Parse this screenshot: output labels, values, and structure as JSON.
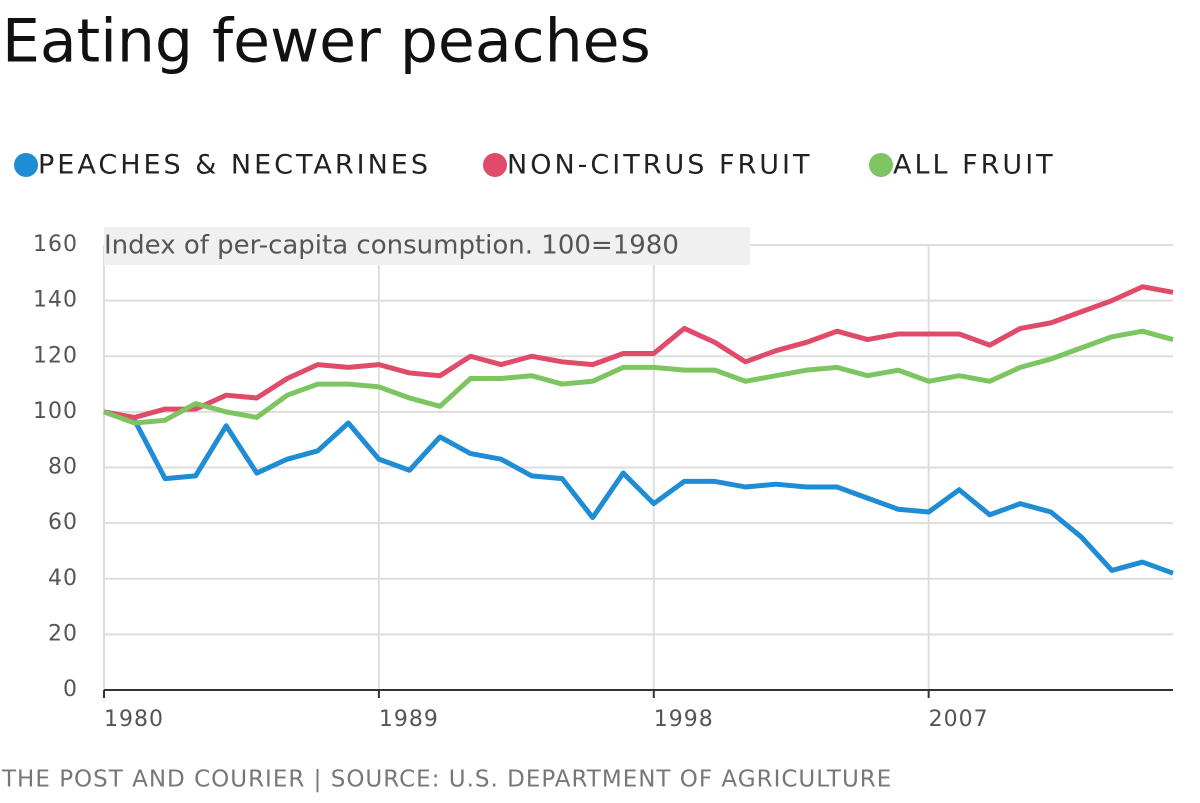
{
  "chart_data": {
    "type": "line",
    "title": "Eating fewer peaches",
    "subtitle": "Index of per-capita consumption. 100=1980",
    "source": "THE POST AND COURIER | SOURCE: U.S. DEPARTMENT OF AGRICULTURE",
    "x": [
      1980,
      1981,
      1982,
      1983,
      1984,
      1985,
      1986,
      1987,
      1988,
      1989,
      1990,
      1991,
      1992,
      1993,
      1994,
      1995,
      1996,
      1997,
      1998,
      1999,
      2000,
      2001,
      2002,
      2003,
      2004,
      2005,
      2006,
      2007,
      2008,
      2009,
      2010,
      2011,
      2012,
      2013,
      2014,
      2015
    ],
    "series": [
      {
        "name": "PEACHES & NECTARINES",
        "color": "#1f8dd6",
        "values": [
          100,
          97,
          76,
          77,
          95,
          78,
          83,
          86,
          96,
          83,
          79,
          91,
          85,
          83,
          77,
          76,
          62,
          78,
          67,
          75,
          75,
          73,
          74,
          73,
          73,
          69,
          65,
          64,
          72,
          63,
          67,
          64,
          55,
          43,
          46,
          42
        ]
      },
      {
        "name": "NON-CITRUS FRUIT",
        "color": "#e04b6a",
        "values": [
          100,
          98,
          101,
          101,
          106,
          105,
          112,
          117,
          116,
          117,
          114,
          113,
          120,
          117,
          120,
          118,
          117,
          121,
          121,
          130,
          125,
          118,
          122,
          125,
          129,
          126,
          128,
          128,
          128,
          124,
          130,
          132,
          136,
          140,
          145,
          143
        ]
      },
      {
        "name": "ALL FRUIT",
        "color": "#7cc560",
        "values": [
          100,
          96,
          97,
          103,
          100,
          98,
          106,
          110,
          110,
          109,
          105,
          102,
          112,
          112,
          113,
          110,
          111,
          116,
          116,
          115,
          115,
          111,
          113,
          115,
          116,
          113,
          115,
          111,
          113,
          111,
          116,
          119,
          123,
          127,
          129,
          126
        ]
      }
    ],
    "xlim": [
      1980,
      2015
    ],
    "xticks": [
      1980,
      1989,
      1998,
      2007
    ],
    "ylim": [
      0,
      160
    ],
    "yticks": [
      0,
      20,
      40,
      60,
      80,
      100,
      120,
      140,
      160
    ],
    "grid": true,
    "legend": "top"
  }
}
